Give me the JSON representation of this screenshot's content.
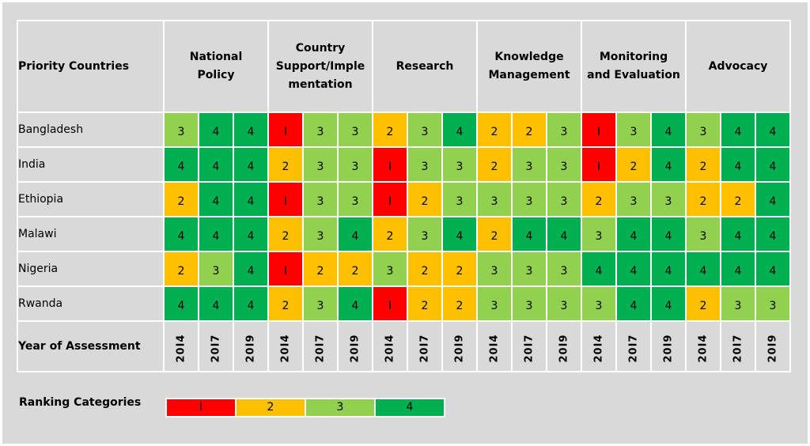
{
  "colors": {
    "1": "#ff0000",
    "2": "#ffc000",
    "3": "#92d050",
    "4": "#00b050"
  },
  "chart_data": {
    "type": "heatmap",
    "title": "",
    "row_header": "Priority Countries",
    "groups": [
      "National Policy",
      "Country Support/Implementation",
      "Research",
      "Knowledge Management",
      "Monitoring and Evaluation",
      "Advocacy"
    ],
    "group_labels": [
      [
        "National",
        "Policy"
      ],
      [
        "Country",
        "Support/Imple",
        "mentation"
      ],
      [
        "Research"
      ],
      [
        "Knowledge",
        "Management"
      ],
      [
        "Monitoring",
        "and Evaluation"
      ],
      [
        "Advocacy"
      ]
    ],
    "years": [
      "2014",
      "2017",
      "2019"
    ],
    "year_row_label": "Year of Assessment",
    "rows": [
      {
        "country": "Bangladesh",
        "values": [
          3,
          4,
          4,
          1,
          3,
          3,
          2,
          3,
          4,
          2,
          2,
          3,
          1,
          3,
          4,
          3,
          4,
          4
        ]
      },
      {
        "country": "India",
        "values": [
          4,
          4,
          4,
          2,
          3,
          3,
          1,
          3,
          3,
          2,
          3,
          3,
          1,
          2,
          4,
          2,
          4,
          4
        ]
      },
      {
        "country": "Ethiopia",
        "values": [
          2,
          4,
          4,
          1,
          3,
          3,
          1,
          2,
          3,
          3,
          3,
          3,
          2,
          3,
          3,
          2,
          2,
          4
        ]
      },
      {
        "country": "Malawi",
        "values": [
          4,
          4,
          4,
          2,
          3,
          4,
          2,
          3,
          4,
          2,
          4,
          4,
          3,
          4,
          4,
          3,
          4,
          4
        ]
      },
      {
        "country": "Nigeria",
        "values": [
          2,
          3,
          4,
          1,
          2,
          2,
          3,
          2,
          2,
          3,
          3,
          3,
          4,
          4,
          4,
          4,
          4,
          4
        ]
      },
      {
        "country": "Rwanda",
        "values": [
          4,
          4,
          4,
          2,
          3,
          4,
          1,
          2,
          2,
          3,
          3,
          3,
          3,
          4,
          4,
          2,
          3,
          3
        ]
      }
    ],
    "legend": {
      "label": "Ranking Categories",
      "categories": [
        "1",
        "2",
        "3",
        "4"
      ]
    }
  }
}
